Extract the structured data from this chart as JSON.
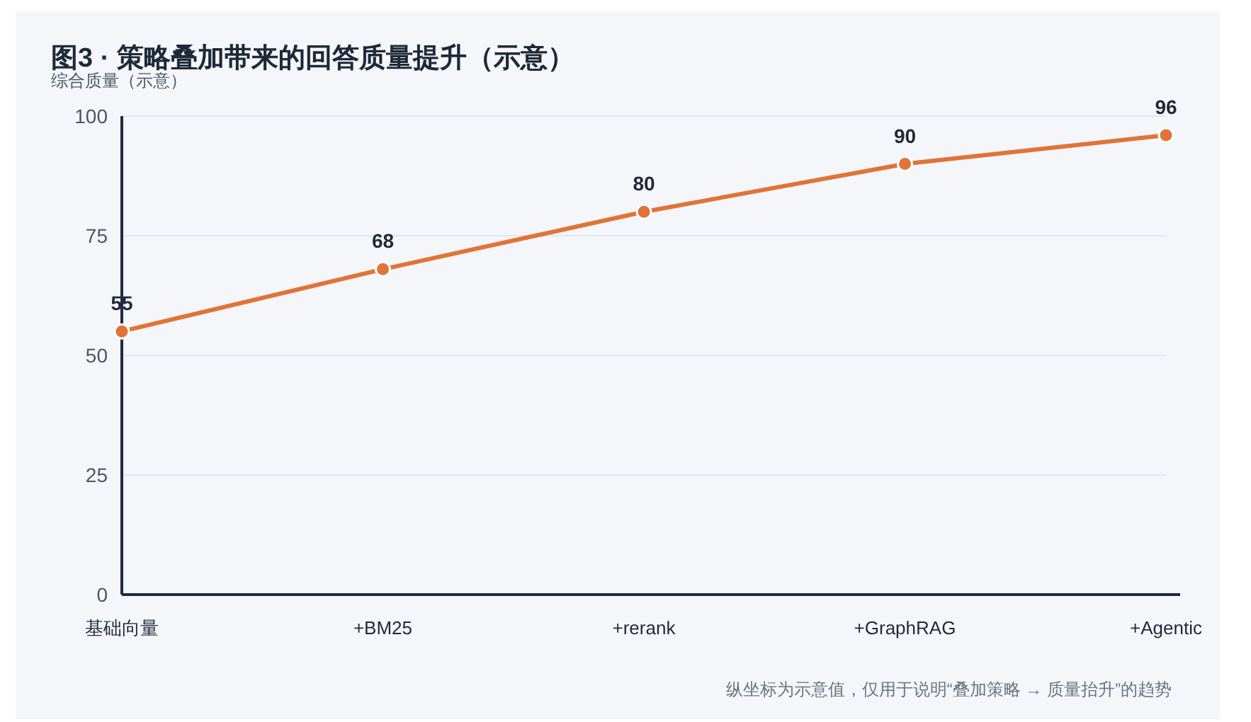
{
  "chart_data": {
    "type": "line",
    "title": "图3 · 策略叠加带来的回答质量提升（示意）",
    "ylabel": "综合质量（示意）",
    "categories": [
      "基础向量",
      "+BM25",
      "+rerank",
      "+GraphRAG",
      "+Agentic"
    ],
    "series": [
      {
        "color": "#e07438",
        "values": [
          55,
          68,
          80,
          90,
          96
        ]
      }
    ],
    "ylim": [
      0,
      100
    ],
    "yticks": [
      0,
      25,
      50,
      75,
      100
    ],
    "grid": "y",
    "marker": "circle",
    "data_labels": true,
    "annotations": [
      "纵坐标为示意值，仅用于说明“叠加策略 → 质量抬升”的趋势"
    ]
  }
}
